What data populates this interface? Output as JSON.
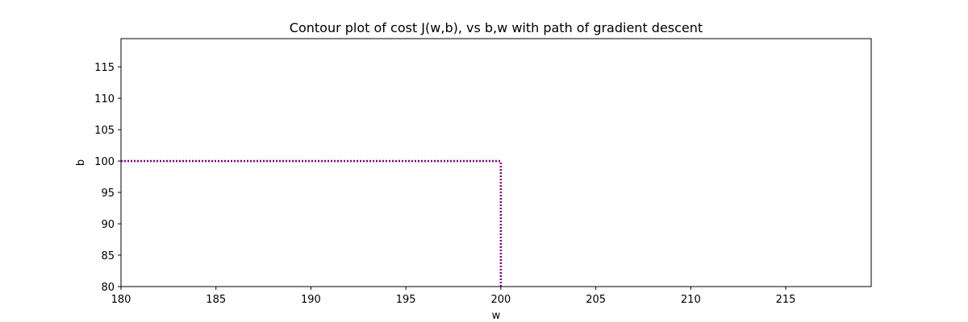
{
  "chart_data": {
    "type": "line",
    "title": "Contour plot of cost J(w,b), vs b,w with path of gradient descent",
    "xlabel": "w",
    "ylabel": "b",
    "xlim": [
      180,
      219.5
    ],
    "ylim": [
      80,
      119.5
    ],
    "x_ticks": [
      180,
      185,
      190,
      195,
      200,
      205,
      210,
      215
    ],
    "y_ticks": [
      80,
      85,
      90,
      95,
      100,
      105,
      110,
      115
    ],
    "grid": false,
    "legend": "none",
    "guide_lines": [
      {
        "orientation": "horizontal",
        "y": 100,
        "x_from": 180,
        "x_to": 200,
        "style": "dotted",
        "color": "#800080"
      },
      {
        "orientation": "vertical",
        "x": 200,
        "y_from": 80,
        "y_to": 100,
        "style": "dotted",
        "color": "#800080"
      }
    ]
  }
}
